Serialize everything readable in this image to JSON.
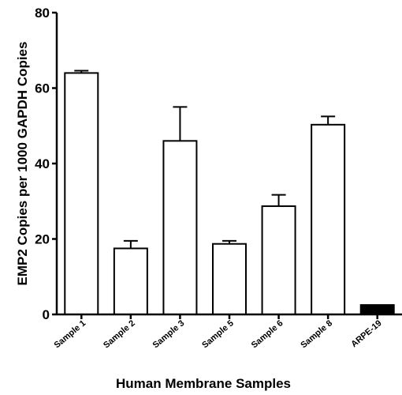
{
  "chart_data": {
    "type": "bar",
    "title": "",
    "xlabel": "Human Membrane Samples",
    "ylabel": "EMP2 Copies per 1000 GAPDH Copies",
    "ylim": [
      0,
      80
    ],
    "yticks": [
      0,
      20,
      40,
      60,
      80
    ],
    "categories": [
      "Sample 1",
      "Sample 2",
      "Sample 3",
      "Sample 5",
      "Sample 6",
      "Sample 8",
      "ARPE-19"
    ],
    "values": [
      64,
      17.5,
      46,
      18.7,
      28.7,
      50.3,
      2.5
    ],
    "error_upper": [
      0.6,
      2,
      9,
      0.8,
      3,
      2.2,
      0
    ],
    "bar_fills": [
      "#ffffff",
      "#ffffff",
      "#ffffff",
      "#ffffff",
      "#ffffff",
      "#ffffff",
      "#000000"
    ],
    "grid": false,
    "legend": "none"
  }
}
